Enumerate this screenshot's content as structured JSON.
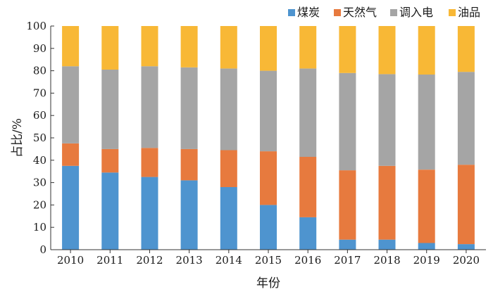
{
  "chart_data": {
    "type": "bar",
    "stacked": true,
    "title": "",
    "xlabel": "年份",
    "ylabel": "占比/%",
    "ylim": [
      0,
      100
    ],
    "yticks": [
      "0",
      "10",
      "20",
      "30",
      "40",
      "50",
      "60",
      "70",
      "80",
      "90",
      "100"
    ],
    "grid": false,
    "legend_position": "top-right",
    "categories": [
      "2010",
      "2011",
      "2012",
      "2013",
      "2014",
      "2015",
      "2016",
      "2017",
      "2018",
      "2019",
      "2020"
    ],
    "series": [
      {
        "name": "煤炭",
        "color": "#4e94cf",
        "values": [
          37.5,
          34.5,
          32.5,
          31.0,
          28.0,
          20.0,
          14.5,
          4.5,
          4.5,
          3.0,
          2.5
        ]
      },
      {
        "name": "天然气",
        "color": "#e77a3e",
        "values": [
          10.0,
          10.5,
          13.0,
          14.0,
          16.5,
          24.0,
          27.0,
          31.0,
          33.0,
          32.8,
          35.5
        ]
      },
      {
        "name": "调入电",
        "color": "#a5a5a5",
        "values": [
          34.5,
          35.5,
          36.5,
          36.5,
          36.5,
          36.0,
          39.5,
          43.5,
          41.0,
          42.5,
          41.5
        ]
      },
      {
        "name": "油品",
        "color": "#f8b836",
        "values": [
          18.0,
          19.5,
          18.0,
          18.5,
          19.0,
          20.0,
          19.0,
          21.0,
          21.5,
          21.7,
          20.5
        ]
      }
    ]
  }
}
